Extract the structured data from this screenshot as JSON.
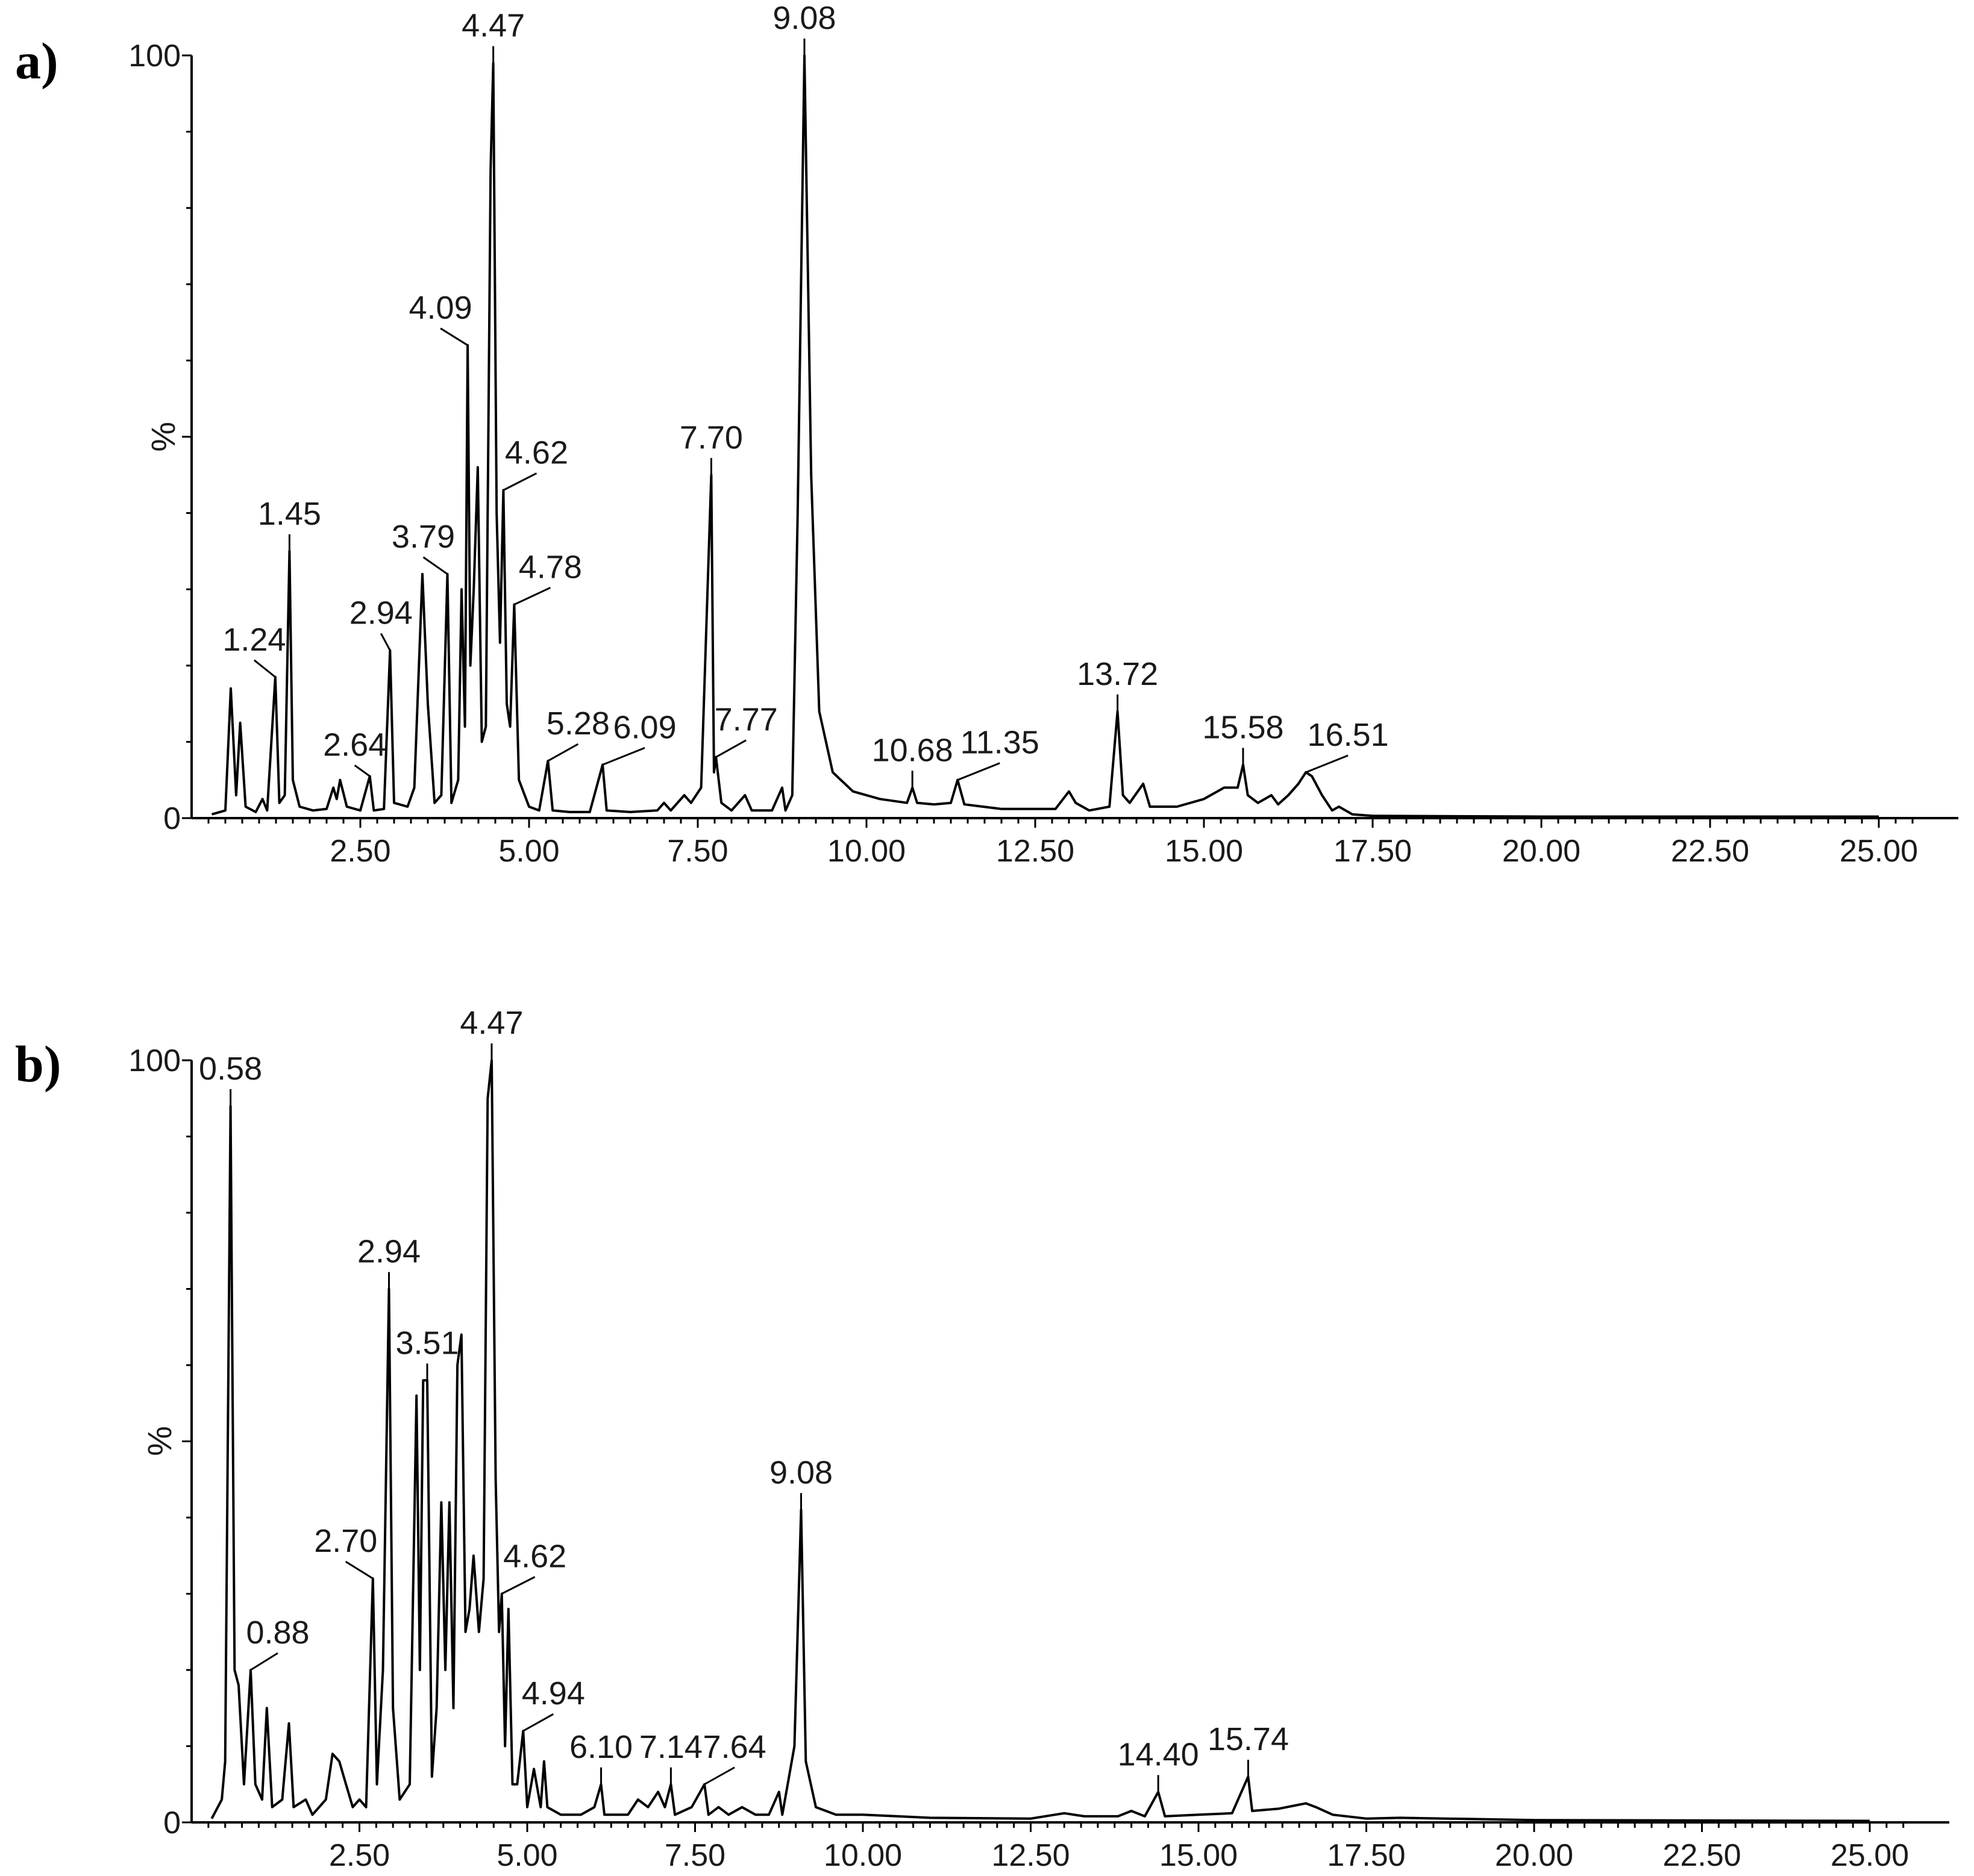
{
  "chart_data": [
    {
      "panel": "a)",
      "type": "line",
      "xlabel": "",
      "ylabel": "%",
      "xlim": [
        0,
        26.0
      ],
      "ylim": [
        0,
        100
      ],
      "x_ticks": [
        "2.50",
        "5.00",
        "7.50",
        "10.00",
        "12.50",
        "15.00",
        "17.50",
        "20.00",
        "22.50",
        "25.00"
      ],
      "y_ticks": [
        "100",
        "0"
      ],
      "grid": false,
      "trace": [
        [
          0.3,
          0.5
        ],
        [
          0.5,
          1
        ],
        [
          0.58,
          17
        ],
        [
          0.66,
          3
        ],
        [
          0.72,
          12.5
        ],
        [
          0.8,
          1.5
        ],
        [
          0.95,
          0.8
        ],
        [
          1.05,
          2.5
        ],
        [
          1.12,
          1
        ],
        [
          1.24,
          18.5
        ],
        [
          1.3,
          2
        ],
        [
          1.38,
          3
        ],
        [
          1.45,
          35
        ],
        [
          1.5,
          5
        ],
        [
          1.6,
          1.5
        ],
        [
          1.8,
          1
        ],
        [
          2.0,
          1.2
        ],
        [
          2.1,
          4
        ],
        [
          2.15,
          2.5
        ],
        [
          2.2,
          5
        ],
        [
          2.3,
          1.5
        ],
        [
          2.5,
          1
        ],
        [
          2.64,
          5.5
        ],
        [
          2.7,
          1
        ],
        [
          2.85,
          1.2
        ],
        [
          2.94,
          22
        ],
        [
          3.0,
          2
        ],
        [
          3.2,
          1.5
        ],
        [
          3.3,
          4
        ],
        [
          3.42,
          32
        ],
        [
          3.5,
          15
        ],
        [
          3.6,
          2
        ],
        [
          3.7,
          3
        ],
        [
          3.79,
          32
        ],
        [
          3.85,
          2
        ],
        [
          3.95,
          5
        ],
        [
          4.0,
          30
        ],
        [
          4.05,
          12
        ],
        [
          4.09,
          62
        ],
        [
          4.13,
          20
        ],
        [
          4.18,
          30
        ],
        [
          4.24,
          46
        ],
        [
          4.3,
          10
        ],
        [
          4.36,
          12
        ],
        [
          4.43,
          85
        ],
        [
          4.47,
          99
        ],
        [
          4.52,
          40
        ],
        [
          4.57,
          23
        ],
        [
          4.62,
          43
        ],
        [
          4.67,
          15
        ],
        [
          4.72,
          12
        ],
        [
          4.78,
          28
        ],
        [
          4.85,
          5
        ],
        [
          5.0,
          1.5
        ],
        [
          5.15,
          1
        ],
        [
          5.28,
          7.5
        ],
        [
          5.35,
          1
        ],
        [
          5.6,
          0.8
        ],
        [
          5.9,
          0.8
        ],
        [
          6.09,
          7
        ],
        [
          6.15,
          1
        ],
        [
          6.5,
          0.8
        ],
        [
          6.9,
          1
        ],
        [
          7.0,
          2
        ],
        [
          7.1,
          1
        ],
        [
          7.3,
          3
        ],
        [
          7.4,
          2
        ],
        [
          7.55,
          4
        ],
        [
          7.7,
          45
        ],
        [
          7.74,
          6
        ],
        [
          7.77,
          8
        ],
        [
          7.85,
          2
        ],
        [
          8.0,
          1
        ],
        [
          8.2,
          3
        ],
        [
          8.3,
          1
        ],
        [
          8.6,
          1
        ],
        [
          8.75,
          4
        ],
        [
          8.8,
          1
        ],
        [
          8.9,
          3
        ],
        [
          8.98,
          40
        ],
        [
          9.08,
          100
        ],
        [
          9.18,
          45
        ],
        [
          9.3,
          14
        ],
        [
          9.5,
          6
        ],
        [
          9.8,
          3.5
        ],
        [
          10.2,
          2.5
        ],
        [
          10.6,
          2
        ],
        [
          10.68,
          4
        ],
        [
          10.75,
          2
        ],
        [
          11.0,
          1.8
        ],
        [
          11.25,
          2
        ],
        [
          11.35,
          5
        ],
        [
          11.45,
          1.8
        ],
        [
          12.0,
          1.2
        ],
        [
          12.8,
          1.2
        ],
        [
          13.0,
          3.5
        ],
        [
          13.1,
          2
        ],
        [
          13.3,
          1
        ],
        [
          13.6,
          1.5
        ],
        [
          13.72,
          14
        ],
        [
          13.8,
          3
        ],
        [
          13.9,
          2
        ],
        [
          14.1,
          4.5
        ],
        [
          14.2,
          1.5
        ],
        [
          14.6,
          1.5
        ],
        [
          15.0,
          2.5
        ],
        [
          15.3,
          4
        ],
        [
          15.5,
          4
        ],
        [
          15.58,
          7
        ],
        [
          15.65,
          3
        ],
        [
          15.8,
          2
        ],
        [
          16.0,
          3
        ],
        [
          16.1,
          1.8
        ],
        [
          16.25,
          3
        ],
        [
          16.4,
          4.5
        ],
        [
          16.51,
          6
        ],
        [
          16.6,
          5.5
        ],
        [
          16.75,
          3
        ],
        [
          16.9,
          1
        ],
        [
          17.0,
          1.5
        ],
        [
          17.2,
          0.5
        ],
        [
          17.5,
          0.3
        ],
        [
          20.0,
          0.2
        ],
        [
          25.0,
          0.2
        ]
      ],
      "peak_labels": [
        {
          "x": 1.24,
          "y": 18.5,
          "label": "1.24"
        },
        {
          "x": 1.45,
          "y": 35,
          "label": "1.45"
        },
        {
          "x": 2.64,
          "y": 5.5,
          "label": "2.64"
        },
        {
          "x": 2.94,
          "y": 22,
          "label": "2.94"
        },
        {
          "x": 3.79,
          "y": 32,
          "label": "3.79"
        },
        {
          "x": 4.09,
          "y": 62,
          "label": "4.09"
        },
        {
          "x": 4.47,
          "y": 99,
          "label": "4.47"
        },
        {
          "x": 4.62,
          "y": 43,
          "label": "4.62"
        },
        {
          "x": 4.78,
          "y": 28,
          "label": "4.78"
        },
        {
          "x": 5.28,
          "y": 7.5,
          "label": "5.28"
        },
        {
          "x": 6.09,
          "y": 7,
          "label": "6.09"
        },
        {
          "x": 7.7,
          "y": 45,
          "label": "7.70"
        },
        {
          "x": 7.77,
          "y": 8,
          "label": "7.77"
        },
        {
          "x": 9.08,
          "y": 100,
          "label": "9.08"
        },
        {
          "x": 10.68,
          "y": 4,
          "label": "10.68"
        },
        {
          "x": 11.35,
          "y": 5,
          "label": "11.35"
        },
        {
          "x": 13.72,
          "y": 14,
          "label": "13.72"
        },
        {
          "x": 15.58,
          "y": 7,
          "label": "15.58"
        },
        {
          "x": 16.51,
          "y": 6,
          "label": "16.51"
        }
      ]
    },
    {
      "panel": "b)",
      "type": "line",
      "xlabel": "",
      "ylabel": "%",
      "xlim": [
        0,
        26.0
      ],
      "ylim": [
        0,
        100
      ],
      "x_ticks": [
        "2.50",
        "5.00",
        "7.50",
        "10.00",
        "12.50",
        "15.00",
        "17.50",
        "20.00",
        "22.50",
        "25.00"
      ],
      "y_ticks": [
        "100",
        "0"
      ],
      "grid": false,
      "trace": [
        [
          0.3,
          0.5
        ],
        [
          0.45,
          3
        ],
        [
          0.5,
          8
        ],
        [
          0.58,
          94
        ],
        [
          0.64,
          20
        ],
        [
          0.7,
          18
        ],
        [
          0.78,
          5
        ],
        [
          0.88,
          20
        ],
        [
          0.95,
          5
        ],
        [
          1.05,
          3
        ],
        [
          1.12,
          15
        ],
        [
          1.2,
          2
        ],
        [
          1.35,
          3
        ],
        [
          1.45,
          13
        ],
        [
          1.52,
          2
        ],
        [
          1.7,
          3
        ],
        [
          1.8,
          1
        ],
        [
          2.0,
          3
        ],
        [
          2.1,
          9
        ],
        [
          2.2,
          8
        ],
        [
          2.3,
          5
        ],
        [
          2.4,
          2
        ],
        [
          2.5,
          3
        ],
        [
          2.6,
          2
        ],
        [
          2.7,
          32
        ],
        [
          2.76,
          5
        ],
        [
          2.85,
          20
        ],
        [
          2.94,
          70
        ],
        [
          3.0,
          15
        ],
        [
          3.1,
          3
        ],
        [
          3.25,
          5
        ],
        [
          3.35,
          56
        ],
        [
          3.4,
          20
        ],
        [
          3.45,
          58
        ],
        [
          3.51,
          58
        ],
        [
          3.58,
          6
        ],
        [
          3.65,
          15
        ],
        [
          3.72,
          42
        ],
        [
          3.78,
          20
        ],
        [
          3.84,
          42
        ],
        [
          3.9,
          15
        ],
        [
          3.96,
          60
        ],
        [
          4.02,
          64
        ],
        [
          4.08,
          25
        ],
        [
          4.14,
          28
        ],
        [
          4.2,
          35
        ],
        [
          4.28,
          25
        ],
        [
          4.35,
          32
        ],
        [
          4.41,
          95
        ],
        [
          4.47,
          100
        ],
        [
          4.53,
          45
        ],
        [
          4.58,
          25
        ],
        [
          4.62,
          30
        ],
        [
          4.67,
          10
        ],
        [
          4.72,
          28
        ],
        [
          4.78,
          5
        ],
        [
          4.85,
          5
        ],
        [
          4.94,
          12
        ],
        [
          5.0,
          2
        ],
        [
          5.1,
          7
        ],
        [
          5.2,
          2
        ],
        [
          5.25,
          8
        ],
        [
          5.3,
          2
        ],
        [
          5.5,
          1
        ],
        [
          5.8,
          1
        ],
        [
          6.0,
          2
        ],
        [
          6.1,
          5
        ],
        [
          6.15,
          1
        ],
        [
          6.5,
          1
        ],
        [
          6.65,
          3
        ],
        [
          6.8,
          2
        ],
        [
          6.95,
          4
        ],
        [
          7.05,
          2
        ],
        [
          7.14,
          5
        ],
        [
          7.2,
          1
        ],
        [
          7.45,
          2
        ],
        [
          7.64,
          5
        ],
        [
          7.7,
          1
        ],
        [
          7.85,
          2
        ],
        [
          8.0,
          1
        ],
        [
          8.2,
          2
        ],
        [
          8.4,
          1
        ],
        [
          8.6,
          1
        ],
        [
          8.75,
          4
        ],
        [
          8.8,
          1
        ],
        [
          8.98,
          10
        ],
        [
          9.08,
          41
        ],
        [
          9.15,
          8
        ],
        [
          9.3,
          2
        ],
        [
          9.6,
          1
        ],
        [
          10.0,
          1
        ],
        [
          11.0,
          0.6
        ],
        [
          12.5,
          0.5
        ],
        [
          13.0,
          1.2
        ],
        [
          13.3,
          0.8
        ],
        [
          13.8,
          0.8
        ],
        [
          14.0,
          1.5
        ],
        [
          14.2,
          0.8
        ],
        [
          14.4,
          4
        ],
        [
          14.5,
          0.8
        ],
        [
          15.0,
          1
        ],
        [
          15.5,
          1.2
        ],
        [
          15.74,
          6
        ],
        [
          15.8,
          1.5
        ],
        [
          16.2,
          1.8
        ],
        [
          16.6,
          2.5
        ],
        [
          16.75,
          2
        ],
        [
          17.0,
          1
        ],
        [
          17.5,
          0.5
        ],
        [
          18.0,
          0.6
        ],
        [
          20.0,
          0.3
        ],
        [
          25.0,
          0.2
        ]
      ],
      "peak_labels": [
        {
          "x": 0.58,
          "y": 94,
          "label": "0.58"
        },
        {
          "x": 0.88,
          "y": 20,
          "label": "0.88"
        },
        {
          "x": 2.7,
          "y": 32,
          "label": "2.70"
        },
        {
          "x": 2.94,
          "y": 70,
          "label": "2.94"
        },
        {
          "x": 3.51,
          "y": 58,
          "label": "3.51"
        },
        {
          "x": 4.47,
          "y": 100,
          "label": "4.47"
        },
        {
          "x": 4.62,
          "y": 30,
          "label": "4.62"
        },
        {
          "x": 4.94,
          "y": 12,
          "label": "4.94"
        },
        {
          "x": 6.1,
          "y": 5,
          "label": "6.10"
        },
        {
          "x": 7.14,
          "y": 5,
          "label": "7.14"
        },
        {
          "x": 7.64,
          "y": 5,
          "label": "7.64"
        },
        {
          "x": 9.08,
          "y": 41,
          "label": "9.08"
        },
        {
          "x": 14.4,
          "y": 4,
          "label": "14.40"
        },
        {
          "x": 15.74,
          "y": 6,
          "label": "15.74"
        }
      ]
    }
  ]
}
